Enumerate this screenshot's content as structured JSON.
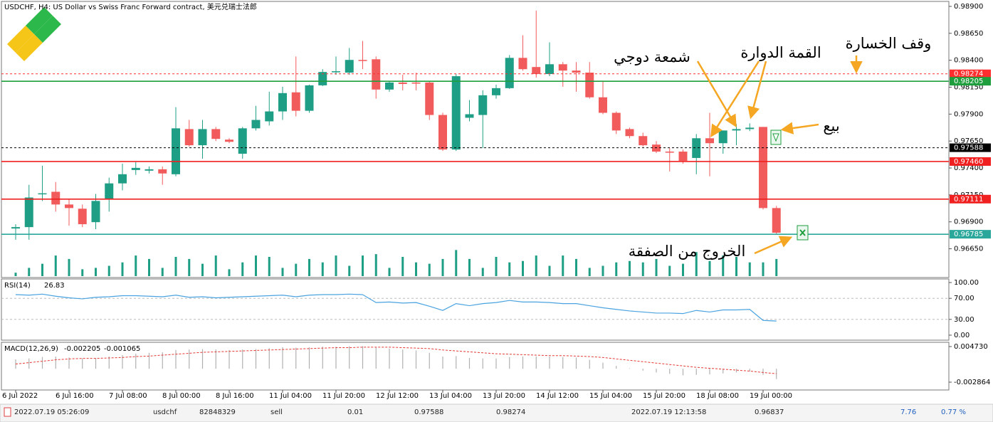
{
  "title": "USDCHF, H4:  US Dollar vs Swiss Franc Forward contract, 美元兑瑞士法郎",
  "annotations": [
    "وقف الخسارة",
    "القمة الدوارة",
    "شمعة دوجي",
    "بيع",
    "الخروج من الصفقة"
  ],
  "trade_row": [
    "2022.07.19 05:26:09",
    "usdchf",
    "82848329",
    "sell",
    "0.01",
    "0.97588",
    "0.98274",
    "2022.07.19 12:13:58",
    "0.96837",
    "7.76",
    "0.77 %"
  ],
  "chart_data": [
    {
      "type": "candlestick",
      "categories": [
        "6 Jul 2022",
        null,
        null,
        null,
        "6 Jul 16:00",
        null,
        null,
        null,
        "7 Jul 08:00",
        null,
        null,
        null,
        "8 Jul 00:00",
        null,
        null,
        null,
        "8 Jul 16:00",
        null,
        null,
        null,
        "11 Jul 04:00",
        null,
        null,
        null,
        "11 Jul 20:00",
        null,
        null,
        null,
        "12 Jul 12:00",
        null,
        null,
        null,
        "13 Jul 04:00",
        null,
        null,
        null,
        "13 Jul 20:00",
        null,
        null,
        null,
        "14 Jul 12:00",
        null,
        null,
        null,
        "15 Jul 04:00",
        null,
        null,
        null,
        "15 Jul 20:00",
        null,
        null,
        null,
        "18 Jul 08:00",
        null,
        null,
        null,
        "19 Jul 00:00",
        null
      ],
      "open": [
        0.96838,
        0.96851,
        0.97159,
        0.97179,
        0.97061,
        0.97022,
        0.96897,
        0.97107,
        0.97257,
        0.97381,
        0.97375,
        0.97388,
        0.97342,
        0.97761,
        0.97611,
        0.97761,
        0.97663,
        0.97532,
        0.97768,
        0.97833,
        0.97925,
        0.98102,
        0.97931,
        0.98167,
        0.98291,
        0.98285,
        0.98403,
        0.98409,
        0.98128,
        0.98193,
        0.98193,
        0.98193,
        0.97892,
        0.97571,
        0.97866,
        0.97892,
        0.98075,
        0.98141,
        0.98422,
        0.98337,
        0.98272,
        0.98363,
        0.98304,
        0.98285,
        0.98056,
        0.97912,
        0.97761,
        0.97696,
        0.97617,
        0.97552,
        0.97552,
        0.97493,
        0.97676,
        0.9763,
        0.97748,
        0.97761,
        0.97781,
        0.97028
      ],
      "high": [
        0.96878,
        0.97244,
        0.97421,
        0.9727,
        0.97107,
        0.97061,
        0.97159,
        0.9731,
        0.9744,
        0.97454,
        0.97414,
        0.97414,
        0.97964,
        0.97846,
        0.97846,
        0.97781,
        0.97676,
        0.97781,
        0.97977,
        0.98108,
        0.98154,
        0.98435,
        0.98173,
        0.98317,
        0.98435,
        0.98514,
        0.98579,
        0.98435,
        0.98206,
        0.98265,
        0.98285,
        0.98206,
        0.97912,
        0.98272,
        0.9803,
        0.98121,
        0.98173,
        0.98448,
        0.98632,
        0.98861,
        0.98566,
        0.98383,
        0.98383,
        0.98383,
        0.98206,
        0.97925,
        0.97774,
        0.97728,
        0.9765,
        0.97584,
        0.97571,
        0.97715,
        0.97912,
        0.97748,
        0.97807,
        0.97814,
        0.97781,
        0.97048
      ],
      "low": [
        0.96734,
        0.96734,
        0.97094,
        0.96995,
        0.96864,
        0.96851,
        0.96832,
        0.96995,
        0.97192,
        0.97336,
        0.97349,
        0.97244,
        0.97323,
        0.97598,
        0.97486,
        0.9765,
        0.9763,
        0.97486,
        0.97748,
        0.97794,
        0.97846,
        0.97879,
        0.97912,
        0.9816,
        0.98265,
        0.98265,
        0.98317,
        0.98043,
        0.98108,
        0.98121,
        0.98121,
        0.97846,
        0.97558,
        0.97558,
        0.97833,
        0.97584,
        0.98043,
        0.98134,
        0.98304,
        0.98239,
        0.98252,
        0.98154,
        0.98108,
        0.98043,
        0.97899,
        0.97715,
        0.97676,
        0.97598,
        0.97538,
        0.97368,
        0.9744,
        0.97342,
        0.97323,
        0.97532,
        0.97611,
        0.97742,
        0.97015,
        0.96786
      ],
      "close": [
        0.96851,
        0.97126,
        0.97165,
        0.97061,
        0.97028,
        0.96878,
        0.97094,
        0.97257,
        0.97342,
        0.97401,
        0.97388,
        0.97349,
        0.97768,
        0.97611,
        0.97761,
        0.9767,
        0.97643,
        0.97768,
        0.97846,
        0.97925,
        0.98095,
        0.97931,
        0.98167,
        0.98291,
        0.98298,
        0.98403,
        0.98396,
        0.98128,
        0.98193,
        0.9818,
        0.98187,
        0.97892,
        0.97571,
        0.98252,
        0.97899,
        0.98075,
        0.98141,
        0.98422,
        0.98317,
        0.98272,
        0.98363,
        0.98304,
        0.98285,
        0.98056,
        0.97912,
        0.97748,
        0.97696,
        0.97611,
        0.97552,
        0.97545,
        0.97466,
        0.97676,
        0.9763,
        0.97748,
        0.97761,
        0.97774,
        0.97028,
        0.96799
      ],
      "volume": [
        5,
        12,
        18,
        30,
        25,
        10,
        12,
        15,
        20,
        30,
        25,
        12,
        28,
        25,
        18,
        30,
        10,
        20,
        30,
        28,
        12,
        18,
        25,
        20,
        30,
        15,
        30,
        32,
        12,
        28,
        20,
        18,
        25,
        38,
        25,
        12,
        28,
        20,
        22,
        30,
        15,
        30,
        25,
        12,
        15,
        20,
        22,
        20,
        25,
        15,
        18,
        35,
        22,
        30,
        28,
        20,
        20,
        25
      ],
      "up_color": "#1f9e86",
      "down_color": "#f25b5b",
      "volume_color": "#1f9e86",
      "ylim": [
        0.96383,
        0.98946
      ],
      "y2lim": [
        0,
        400
      ],
      "yticks": [
        {
          "value": 0.989,
          "label": "0.98900"
        },
        {
          "value": 0.9865,
          "label": "0.98650"
        },
        {
          "value": 0.984,
          "label": "0.98400"
        },
        {
          "value": 0.9815,
          "label": "0.98150"
        },
        {
          "value": 0.979,
          "label": "0.97900"
        },
        {
          "value": 0.9765,
          "label": "0.97650"
        },
        {
          "value": 0.974,
          "label": "0.97400"
        },
        {
          "value": 0.9715,
          "label": "0.97150"
        },
        {
          "value": 0.969,
          "label": "0.96900"
        },
        {
          "value": 0.9665,
          "label": "0.96650"
        }
      ],
      "levels": [
        {
          "value": 0.98274,
          "color": "#ff2d2d",
          "style": "dashed"
        },
        {
          "value": 0.98205,
          "color": "#1e9e3c",
          "style": "solid"
        },
        {
          "value": 0.97588,
          "color": "#000000",
          "style": "dashed"
        },
        {
          "value": 0.9746,
          "label": "0.97460",
          "color": "#f02020",
          "style": "solid"
        },
        {
          "value": 0.97111,
          "color": "#f02020",
          "style": "solid"
        },
        {
          "value": 0.96785,
          "color": "#2aa79b",
          "style": "solid"
        }
      ]
    },
    {
      "type": "line",
      "title": "RSI(14)",
      "values": [
        77,
        76,
        78,
        74,
        71,
        69,
        72,
        73,
        75,
        75,
        74,
        73,
        76,
        72,
        73,
        71,
        72,
        73,
        74,
        75,
        76,
        73,
        76,
        77,
        77,
        78,
        77,
        62,
        63,
        61,
        62,
        55,
        47,
        60,
        56,
        60,
        62,
        66,
        63,
        63,
        62,
        60,
        60,
        56,
        52,
        49,
        46,
        44,
        42,
        42,
        41,
        47,
        44,
        48,
        48,
        49,
        28,
        26.83
      ],
      "color": "#4aa3e0",
      "ylim": [
        -9.5,
        106.8
      ],
      "yticks": [
        {
          "value": 100,
          "label": "100.00"
        },
        {
          "value": 70,
          "label": "70.00"
        },
        {
          "value": 30,
          "label": "30.00"
        },
        {
          "value": 0,
          "label": "0.00"
        }
      ],
      "levels": [
        70,
        30
      ]
    },
    {
      "type": "macd",
      "title": "MACD(12,26,9)",
      "values": [
        0.002,
        0.0022,
        0.0025,
        0.0026,
        0.0024,
        0.0022,
        0.0023,
        0.0026,
        0.0029,
        0.0032,
        0.0034,
        0.0035,
        0.004,
        0.0041,
        0.0042,
        0.0041,
        0.004,
        0.0041,
        0.0042,
        0.0044,
        0.0046,
        0.0045,
        0.0046,
        0.0047,
        0.0047,
        0.0048,
        0.0048,
        0.0045,
        0.0043,
        0.0041,
        0.0039,
        0.0034,
        0.0026,
        0.0027,
        0.0023,
        0.0022,
        0.0022,
        0.0025,
        0.0026,
        0.0026,
        0.0026,
        0.0025,
        0.0024,
        0.0019,
        0.0013,
        0.0006,
        0.0001,
        -0.0004,
        -0.0008,
        -0.0011,
        -0.0014,
        -0.0013,
        -0.0012,
        -0.001,
        -0.0008,
        -0.0006,
        -0.0013,
        -0.002205
      ],
      "signal": [
        0.001,
        0.0013,
        0.0016,
        0.0019,
        0.0021,
        0.0022,
        0.0022,
        0.0023,
        0.0024,
        0.0026,
        0.0027,
        0.0029,
        0.0031,
        0.0033,
        0.0035,
        0.0036,
        0.0037,
        0.0038,
        0.0039,
        0.004,
        0.0041,
        0.0042,
        0.0043,
        0.0044,
        0.0045,
        0.0045,
        0.0046,
        0.0046,
        0.0046,
        0.0045,
        0.0044,
        0.0043,
        0.004,
        0.0038,
        0.0036,
        0.0034,
        0.0032,
        0.0031,
        0.003,
        0.0029,
        0.0028,
        0.0028,
        0.0027,
        0.0026,
        0.0024,
        0.0021,
        0.0018,
        0.0015,
        0.0012,
        0.0009,
        0.0006,
        0.0003,
        0.0001,
        -0.0001,
        -0.0003,
        -0.0005,
        -0.0008,
        -0.001065
      ],
      "color": "#b0b0b0",
      "signal_color": "#e53935",
      "ylim": [
        -0.004535,
        0.005641
      ],
      "yticks": [
        {
          "value": 0.00473,
          "label": "0.004730"
        },
        {
          "value": -0.002864,
          "label": "-0.002864"
        }
      ]
    }
  ]
}
